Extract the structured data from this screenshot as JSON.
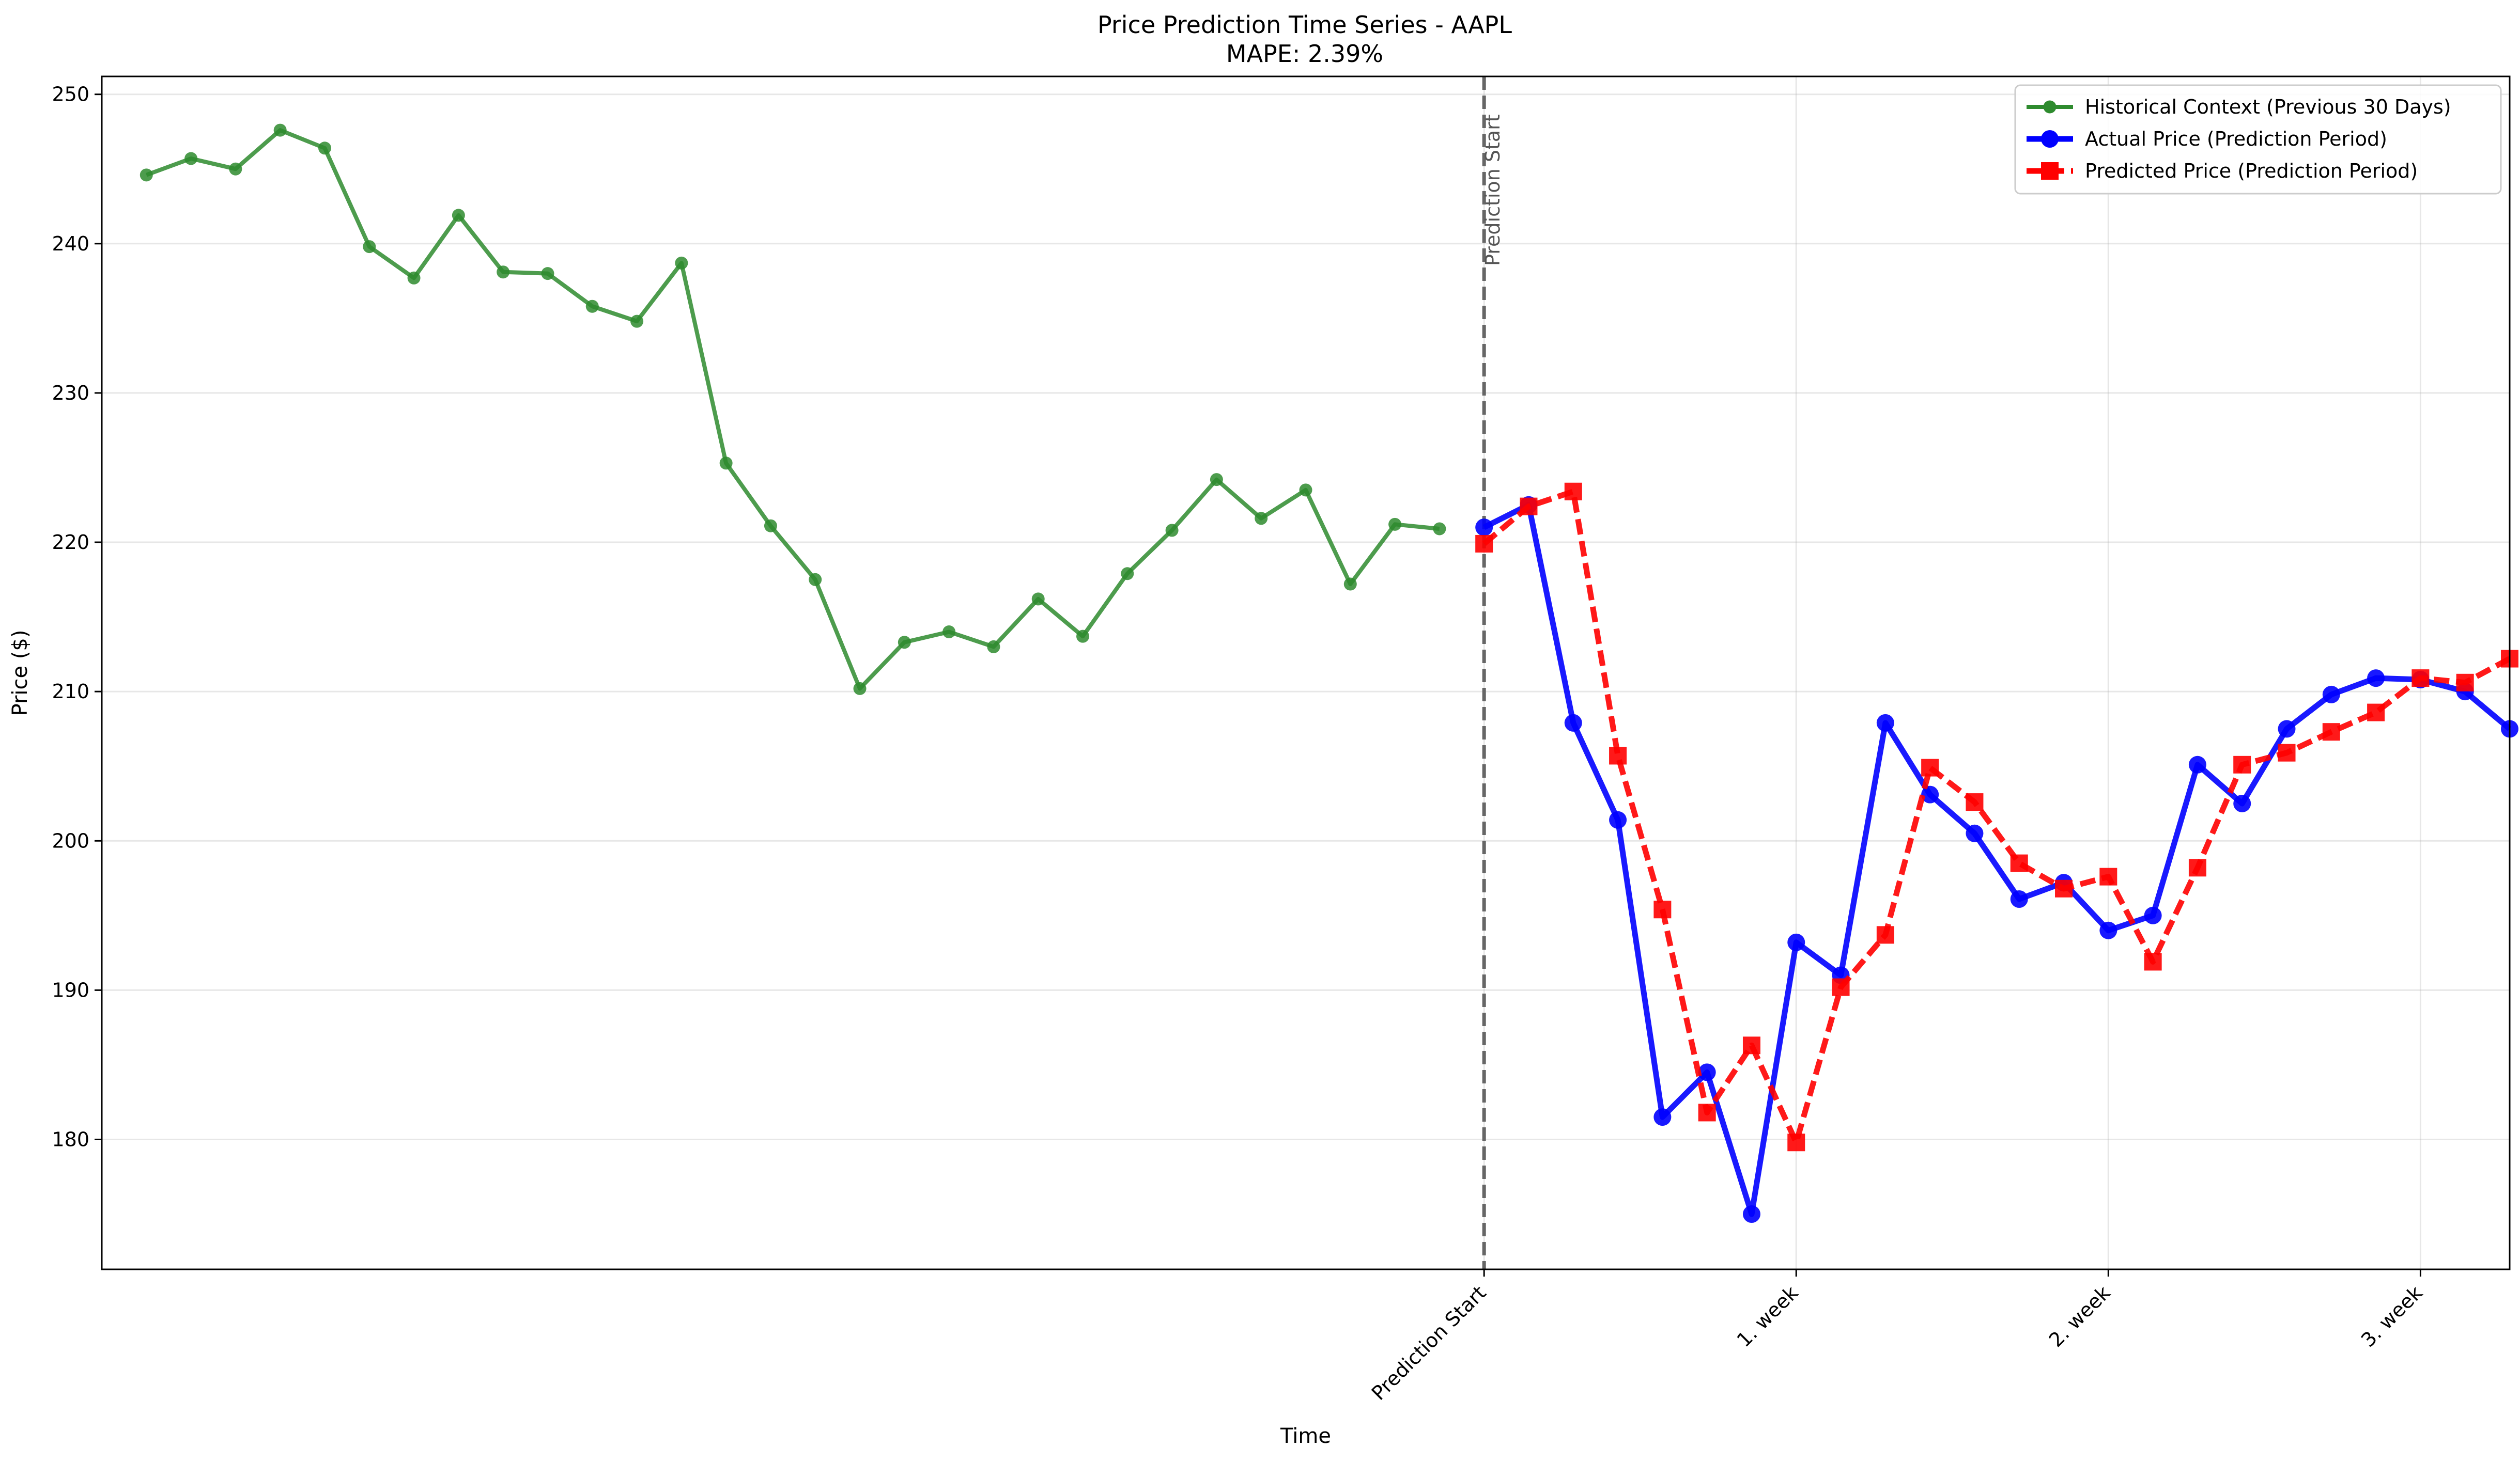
{
  "chart_data": {
    "type": "line",
    "title": "Price Prediction Time Series - AAPL",
    "subtitle": "MAPE: 2.39%",
    "xlabel": "Time",
    "ylabel": "Price ($)",
    "xlim": [
      -1,
      53
    ],
    "ylim": [
      171.3,
      251.2
    ],
    "yticks": [
      180,
      190,
      200,
      210,
      220,
      230,
      240,
      250
    ],
    "xticks": [
      {
        "pos": 30,
        "label": "Prediction Start"
      },
      {
        "pos": 37,
        "label": "1. week"
      },
      {
        "pos": 44,
        "label": "2. week"
      },
      {
        "pos": 51,
        "label": "3. week"
      }
    ],
    "grid": true,
    "legend_position": "top-right",
    "prediction_start": {
      "x": 30,
      "label": "Prediction Start"
    },
    "series": [
      {
        "name": "Historical Context (Previous 30 Days)",
        "color": "#2e8b2e",
        "style": "solid",
        "marker": "circle",
        "x": [
          0,
          1,
          2,
          3,
          4,
          5,
          6,
          7,
          8,
          9,
          10,
          11,
          12,
          13,
          14,
          15,
          16,
          17,
          18,
          19,
          20,
          21,
          22,
          23,
          24,
          25,
          26,
          27,
          28,
          29
        ],
        "values": [
          244.6,
          245.7,
          245.0,
          247.6,
          246.4,
          239.8,
          237.7,
          241.9,
          238.1,
          238.0,
          235.8,
          234.8,
          238.7,
          225.3,
          221.1,
          217.5,
          210.2,
          213.3,
          214.0,
          213.0,
          216.2,
          213.7,
          217.9,
          220.8,
          224.2,
          221.6,
          223.5,
          217.2,
          221.2,
          220.9
        ]
      },
      {
        "name": "Actual Price (Prediction Period)",
        "color": "#0000ff",
        "style": "solid",
        "marker": "circle",
        "x": [
          30,
          31,
          32,
          33,
          34,
          35,
          36,
          37,
          38,
          39,
          40,
          41,
          42,
          43,
          44,
          45,
          46,
          47,
          48,
          49,
          50,
          51,
          52,
          53
        ],
        "values": [
          221.0,
          222.5,
          207.9,
          201.4,
          181.5,
          184.5,
          175.0,
          193.2,
          191.0,
          207.9,
          203.1,
          200.5,
          196.1,
          197.2,
          194.0,
          195.0,
          205.1,
          202.5,
          207.5,
          209.8,
          210.9,
          210.8,
          210.0,
          207.5
        ]
      },
      {
        "name": "Predicted Price (Prediction Period)",
        "color": "#ff0000",
        "style": "dashed",
        "marker": "square",
        "x": [
          30,
          31,
          32,
          33,
          34,
          35,
          36,
          37,
          38,
          39,
          40,
          41,
          42,
          43,
          44,
          45,
          46,
          47,
          48,
          49,
          50,
          51,
          52,
          53
        ],
        "values": [
          219.9,
          222.4,
          223.4,
          205.7,
          195.4,
          181.8,
          186.3,
          179.8,
          190.2,
          193.7,
          204.9,
          202.6,
          198.5,
          196.8,
          197.6,
          191.9,
          198.2,
          205.1,
          205.9,
          207.3,
          208.6,
          210.9,
          210.6,
          212.2
        ]
      }
    ]
  }
}
